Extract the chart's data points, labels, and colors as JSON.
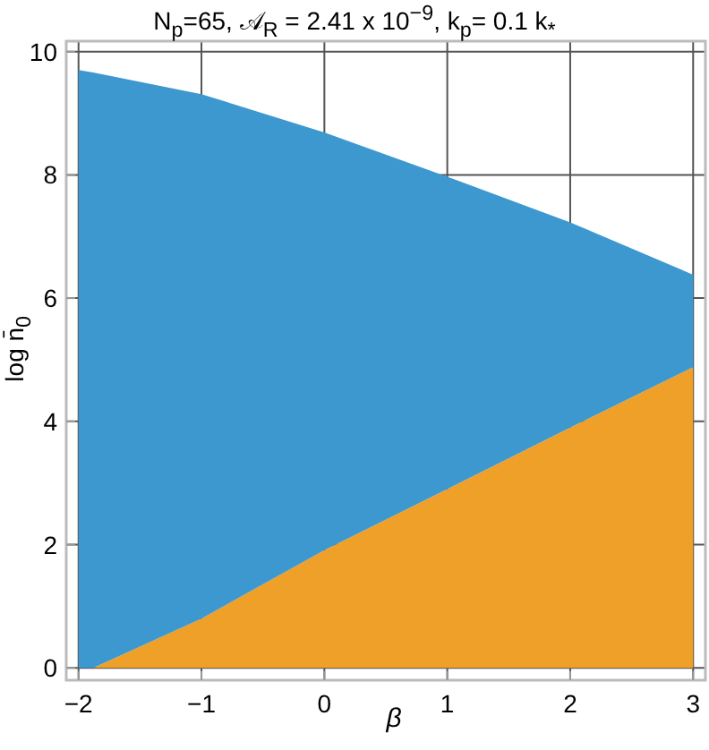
{
  "chart_data": {
    "type": "area",
    "stacked": true,
    "title": "N$_{p}$=65,  𝒜$_{R}$ = 2.41 x 10$^{−9}$, k$_{p}$= 0.1 k$_{*}$",
    "xlabel": "β",
    "ylabel": "log n̄$_{0}$",
    "x": [
      -2,
      -1.88,
      -1,
      0,
      1,
      2,
      3
    ],
    "series": [
      {
        "color": "#eea029",
        "values": [
          0,
          0,
          0.8,
          1.91,
          2.9,
          3.9,
          4.88
        ]
      },
      {
        "color": "#3d98d0",
        "values": [
          9.7,
          9.66,
          8.51,
          6.78,
          5.07,
          3.33,
          1.5
        ]
      }
    ],
    "xlim": [
      -2.1,
      3.1
    ],
    "ylim": [
      -0.2,
      10.17
    ],
    "xticks": [
      -2,
      -1,
      0,
      1,
      2,
      3
    ],
    "yticks": [
      0,
      2,
      4,
      6,
      8,
      10
    ],
    "grid": true
  }
}
